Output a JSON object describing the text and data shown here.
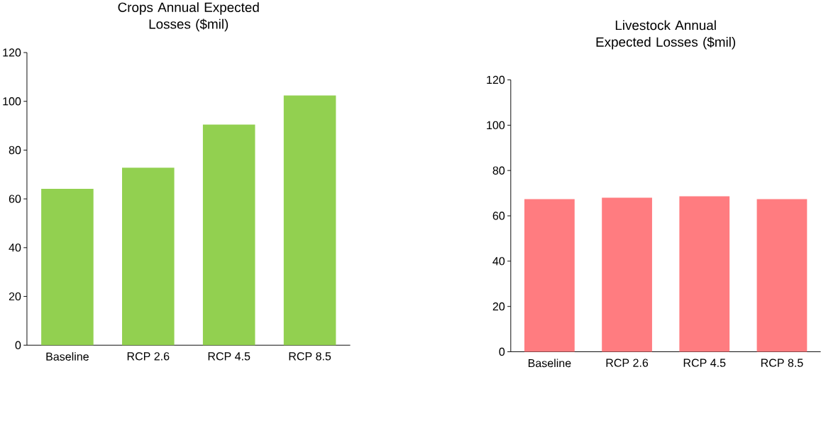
{
  "chart_data": [
    {
      "type": "bar",
      "title": "Crops Annual Expected Losses ($mil)",
      "categories": [
        "Baseline",
        "RCP 2.6",
        "RCP 4.5",
        "RCP 8.5"
      ],
      "values": [
        64.1,
        72.8,
        90.5,
        102.4
      ],
      "color": "#92d050",
      "ylim": [
        0,
        120
      ],
      "yticks": [
        0,
        20,
        40,
        60,
        80,
        100,
        120
      ]
    },
    {
      "type": "bar",
      "title": "Livestock Annual Expected Losses ($mil)",
      "categories": [
        "Baseline",
        "RCP 2.6",
        "RCP 4.5",
        "RCP 8.5"
      ],
      "values": [
        67.4,
        68.0,
        68.6,
        67.4
      ],
      "color": "#ff7c80",
      "ylim": [
        0,
        120
      ],
      "yticks": [
        0,
        20,
        40,
        60,
        80,
        100,
        120
      ]
    }
  ]
}
